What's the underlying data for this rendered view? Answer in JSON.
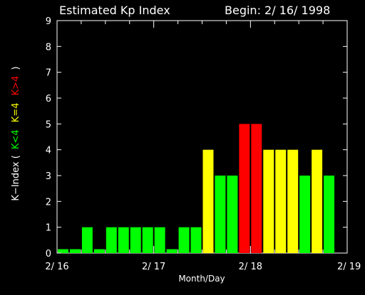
{
  "chart_data": {
    "type": "bar",
    "title": "Estimated Kp Index",
    "begin_label": "Begin: 2/ 16/ 1998",
    "xlabel": "Month/Day",
    "ylabel_parts": {
      "prefix": "K−Index (",
      "low": "K<4",
      "mid": "K=4",
      "high": "K>4",
      "suffix": ")"
    },
    "ylim": [
      0,
      9
    ],
    "yticks": [
      "0",
      "1",
      "2",
      "3",
      "4",
      "5",
      "6",
      "7",
      "8",
      "9"
    ],
    "x_range_days": [
      0,
      3
    ],
    "xticks": [
      {
        "label": "2/ 16",
        "day": 0
      },
      {
        "label": "2/ 17",
        "day": 1
      },
      {
        "label": "2/ 18",
        "day": 2
      },
      {
        "label": "2/ 19",
        "day": 3
      }
    ],
    "bar_width_hours": 3,
    "values": [
      0.15,
      0.15,
      1,
      0.15,
      1,
      1,
      1,
      1,
      1,
      0.15,
      1,
      1,
      4,
      3,
      3,
      5,
      5,
      4,
      4,
      4,
      3,
      4,
      3
    ],
    "colors": {
      "low": "#00ff00",
      "equal": "#ffff00",
      "high": "#ff0000",
      "axis": "#ffffff",
      "background": "#000000"
    }
  }
}
